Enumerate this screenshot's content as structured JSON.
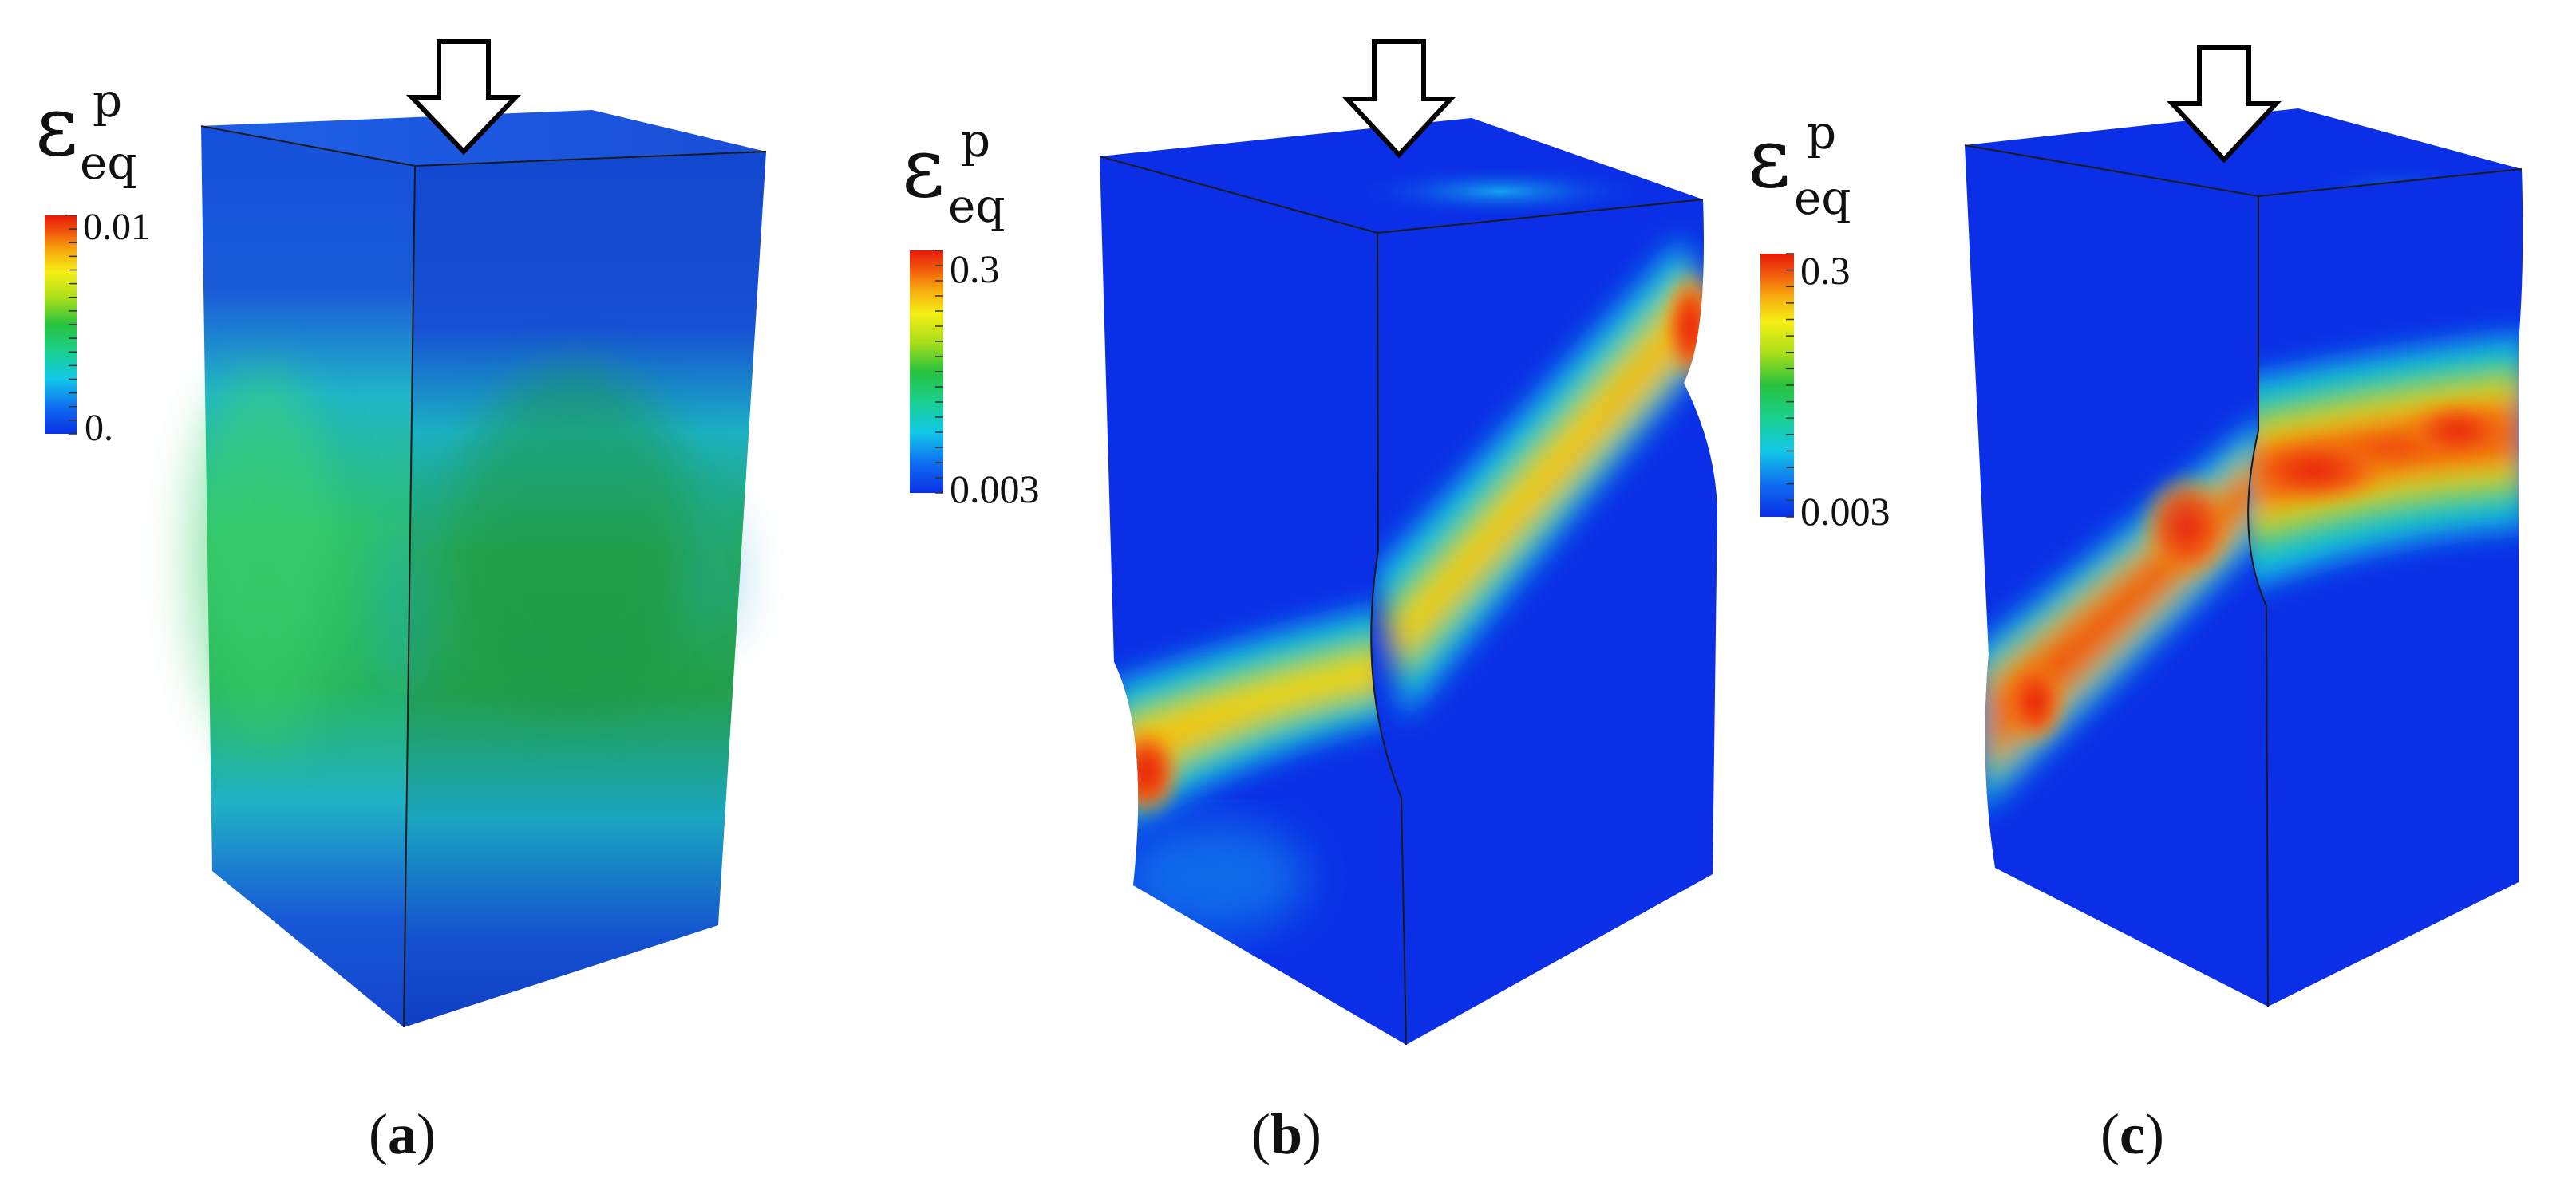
{
  "panels": [
    {
      "id": "a",
      "caption_open": "(",
      "caption_letter": "a",
      "caption_close": ")",
      "legend": {
        "symbol_base": "ε",
        "symbol_superscript": "p",
        "symbol_subscript": "eq",
        "max_label": "0.01",
        "min_label": "0."
      }
    },
    {
      "id": "b",
      "caption_open": "(",
      "caption_letter": "b",
      "caption_close": ")",
      "legend": {
        "symbol_base": "ε",
        "symbol_superscript": "p",
        "symbol_subscript": "eq",
        "max_label": "0.3",
        "min_label": "0.003"
      }
    },
    {
      "id": "c",
      "caption_open": "(",
      "caption_letter": "c",
      "caption_close": ")",
      "legend": {
        "symbol_base": "ε",
        "symbol_superscript": "p",
        "symbol_subscript": "eq",
        "max_label": "0.3",
        "min_label": "0.003"
      }
    }
  ],
  "colormap": [
    "#0a2fe6",
    "#0f6cf0",
    "#12c8e8",
    "#1bd08c",
    "#27c23d",
    "#a8de1a",
    "#f5ef14",
    "#f7a90e",
    "#f0520c",
    "#e81a0a"
  ],
  "colors": {
    "background": "#ffffff",
    "arrow_fill": "#ffffff",
    "arrow_stroke": "#000000",
    "edge": "#1a1a1a"
  }
}
